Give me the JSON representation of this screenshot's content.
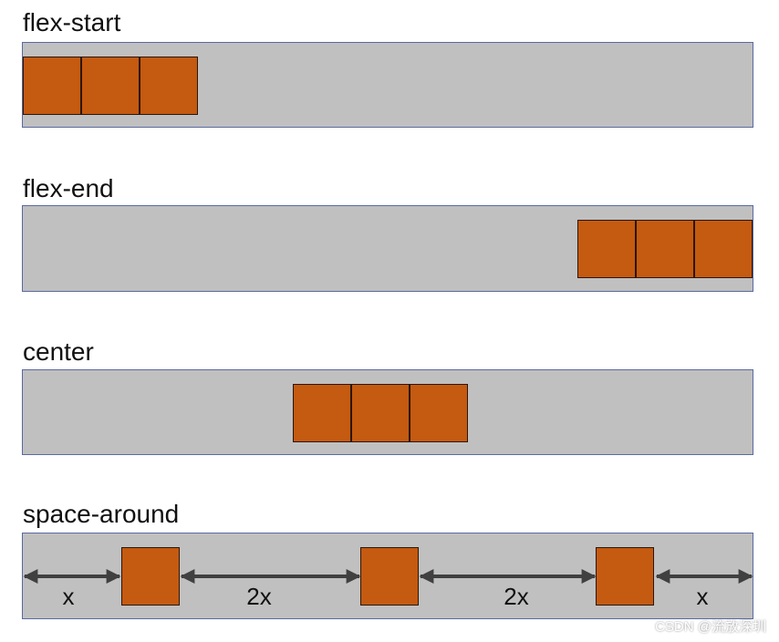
{
  "sections": [
    {
      "label": "flex-start"
    },
    {
      "label": "flex-end"
    },
    {
      "label": "center"
    },
    {
      "label": "space-around"
    }
  ],
  "gap_labels": [
    "x",
    "2x",
    "2x",
    "x"
  ],
  "watermark": "CSDN @流放深圳",
  "colors": {
    "container": "#c0c0c0",
    "item": "#c55a11",
    "arrow": "#404040"
  }
}
